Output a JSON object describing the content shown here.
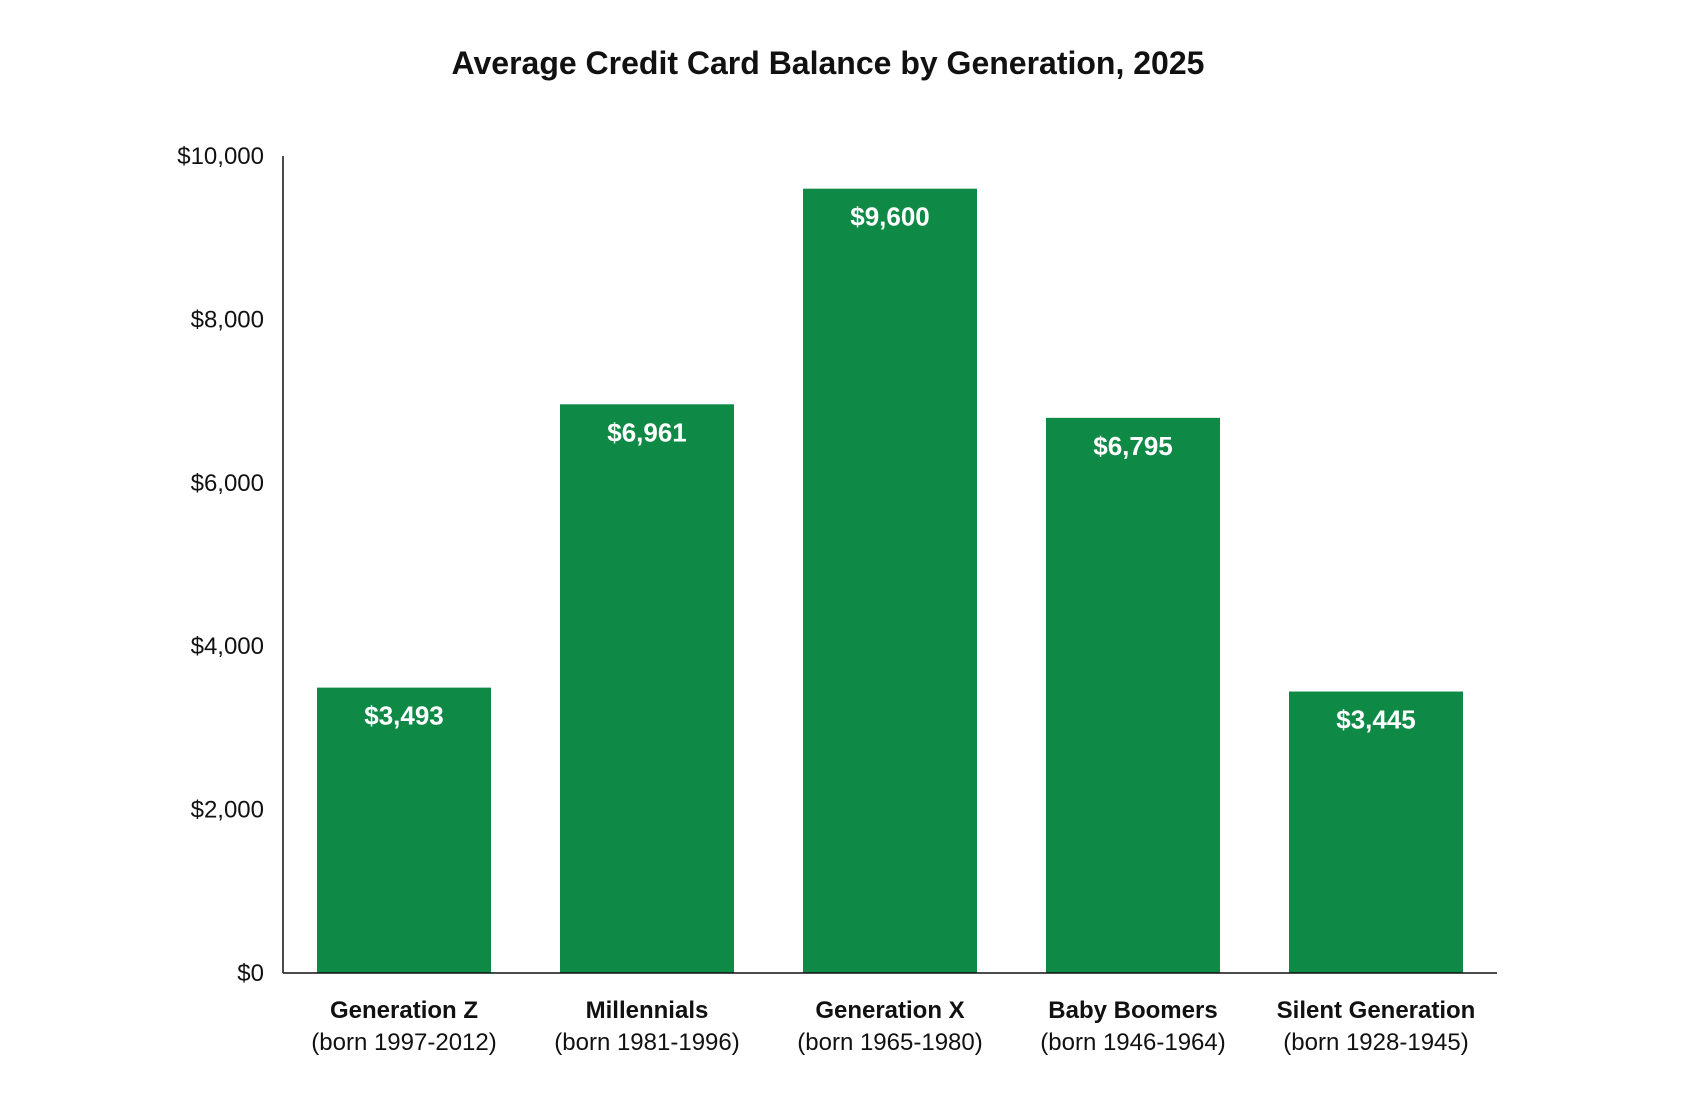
{
  "chart_data": {
    "type": "bar",
    "title": "Average Credit Card Balance by Generation, 2025",
    "xlabel": "",
    "ylabel": "",
    "ylim": [
      0,
      10000
    ],
    "yticks": [
      "$0",
      "$2,000",
      "$4,000",
      "$6,000",
      "$8,000",
      "$10,000"
    ],
    "ytick_values": [
      0,
      2000,
      4000,
      6000,
      8000,
      10000
    ],
    "categories": [
      "Generation Z",
      "Millennials",
      "Generation X",
      "Baby Boomers",
      "Silent Generation"
    ],
    "subcategories": [
      "(born 1997-2012)",
      "(born 1981-1996)",
      "(born 1965-1980)",
      "(born 1946-1964)",
      "(born 1928-1945)"
    ],
    "values": [
      3493,
      6961,
      9600,
      6795,
      3445
    ],
    "data_labels": [
      "$3,493",
      "$6,961",
      "$9,600",
      "$6,795",
      "$3,445"
    ],
    "grid": false,
    "bar_color": "#0f8946"
  }
}
